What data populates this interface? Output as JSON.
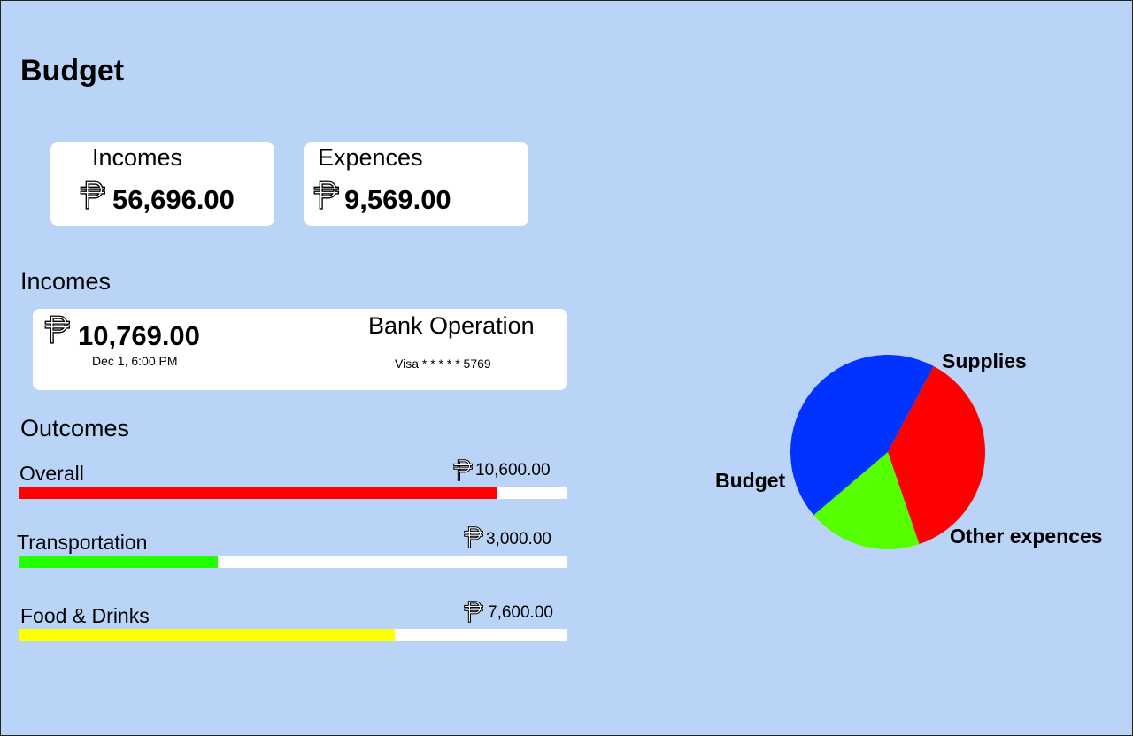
{
  "header": {
    "title": "Budget"
  },
  "currency_symbol": "₱",
  "summary": {
    "incomes": {
      "label": "Incomes",
      "amount": "56,696.00"
    },
    "expences": {
      "label": "Expences",
      "amount": "9,569.00"
    }
  },
  "incomes_section": {
    "title": "Incomes",
    "transaction": {
      "amount": "10,769.00",
      "datetime": "Dec 1, 6:00 PM",
      "type": "Bank Operation",
      "card": "Visa * * * * * 5769"
    }
  },
  "outcomes_section": {
    "title": "Outcomes",
    "bars": [
      {
        "label": "Overall",
        "amount": "10,600.00",
        "fraction": 0.873,
        "color": "#ff0000"
      },
      {
        "label": "Transportation",
        "amount": "3,000.00",
        "fraction": 0.362,
        "color": "#22ff00"
      },
      {
        "label": "Food & Drinks",
        "amount": "7,600.00",
        "fraction": 0.685,
        "color": "#ffff00"
      }
    ]
  },
  "chart_data": {
    "type": "pie",
    "slices": [
      {
        "label": "Supplies",
        "value": 37,
        "color": "#ff0000"
      },
      {
        "label": "Other expences",
        "value": 19,
        "color": "#55ff00"
      },
      {
        "label": "Budget",
        "value": 44,
        "color": "#0033ff"
      }
    ]
  }
}
